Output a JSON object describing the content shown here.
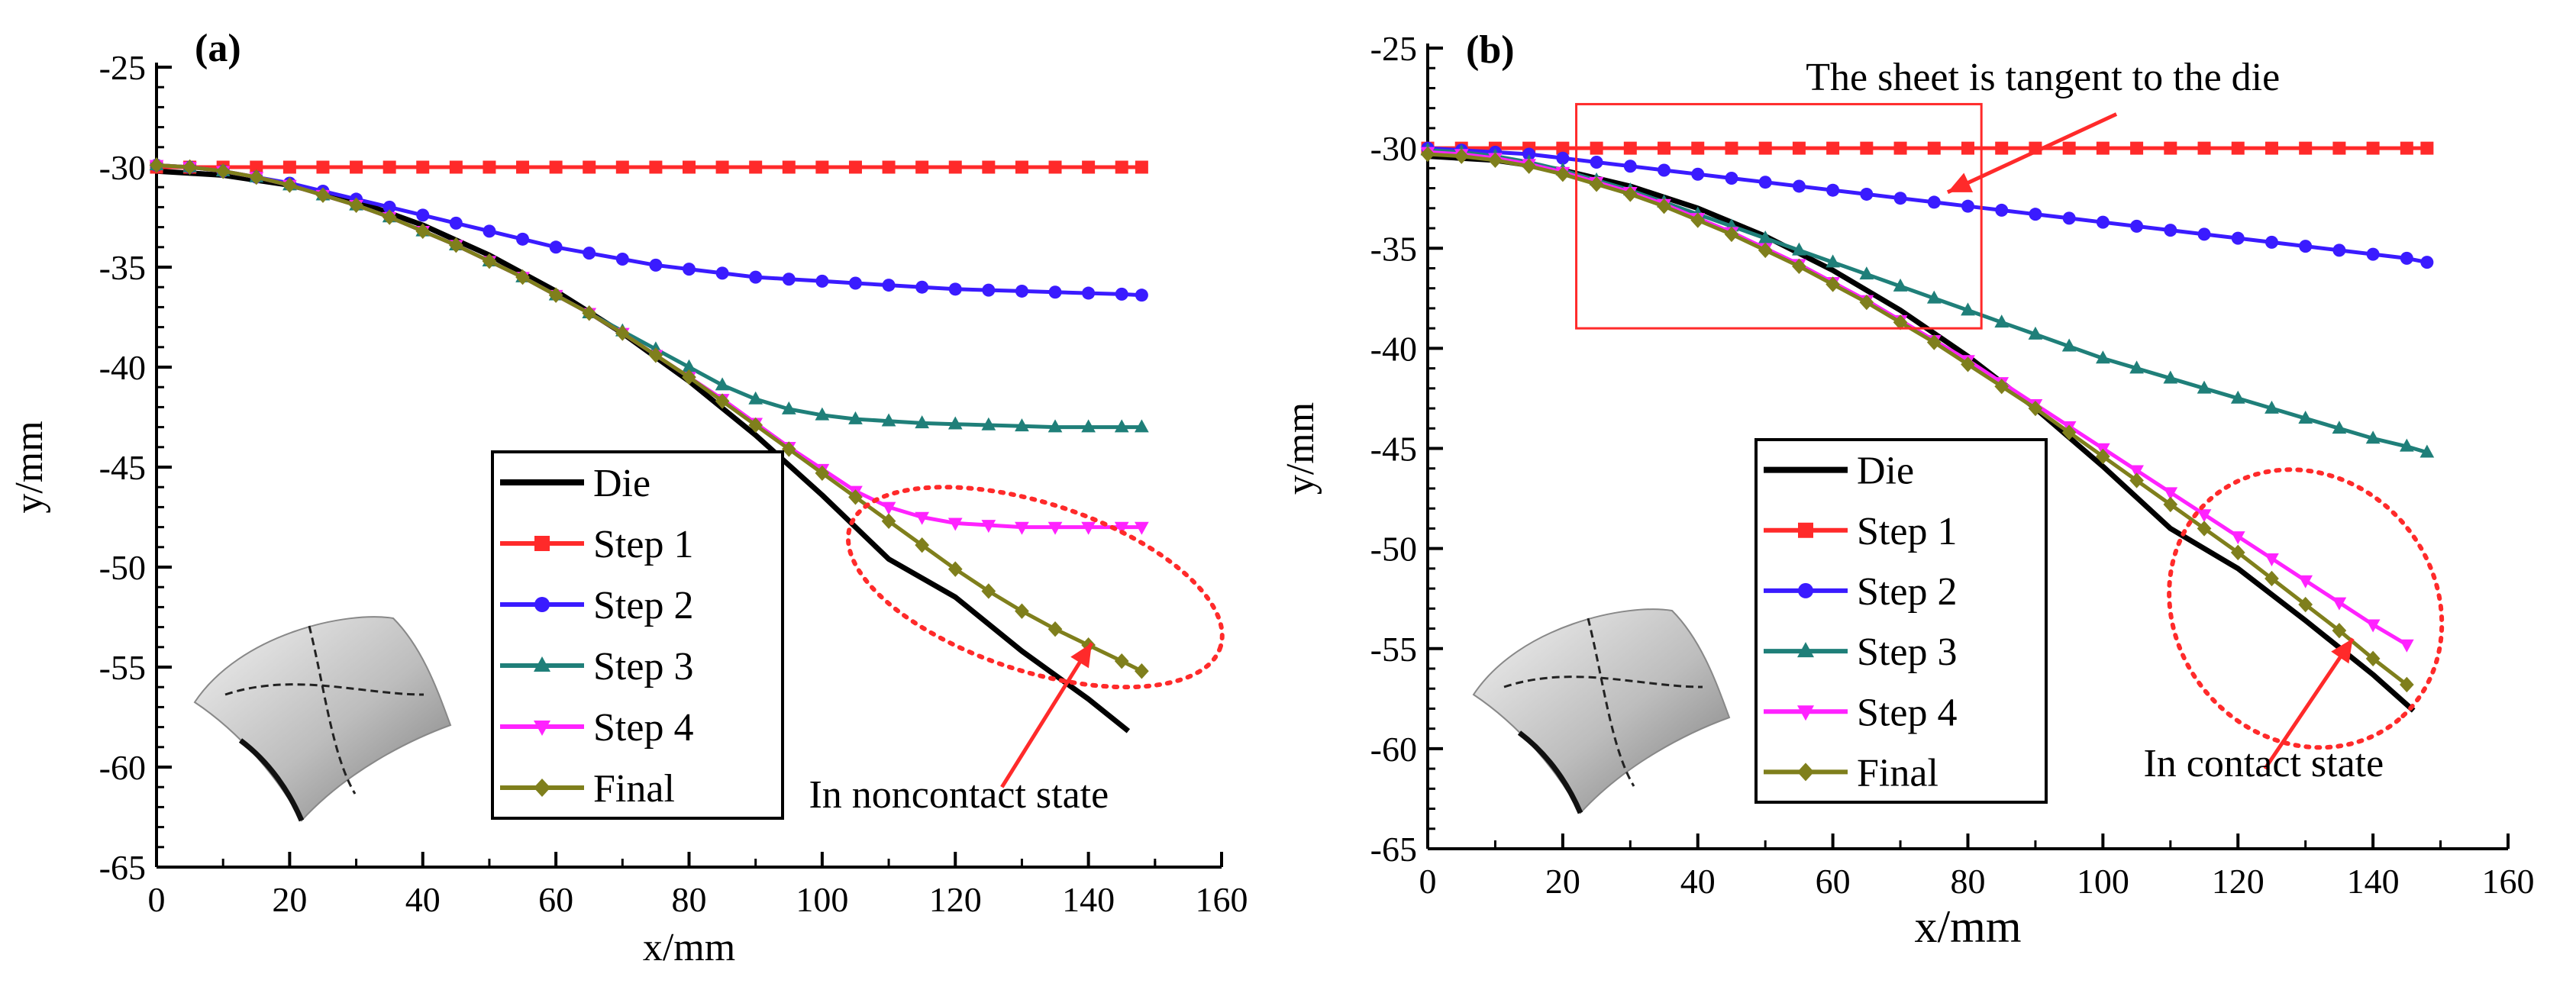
{
  "colors": {
    "die": "#000000",
    "step1": "#ff2a2a",
    "step2": "#3a1bff",
    "step3": "#1f7f79",
    "step4": "#ff22ff",
    "final": "#7f7f1c",
    "annotation": "#ff2a2a",
    "axis": "#000000"
  },
  "chart_data": [
    {
      "type": "line",
      "panel_label": "(a)",
      "xlabel": "x/mm",
      "ylabel": "y/mm",
      "xlim": [
        0,
        160
      ],
      "ylim": [
        -65,
        -25
      ],
      "xticks": [
        0,
        20,
        40,
        60,
        80,
        100,
        120,
        140,
        160
      ],
      "yticks": [
        -25,
        -30,
        -35,
        -40,
        -45,
        -50,
        -55,
        -60,
        -65
      ],
      "legend_position": "lower-center",
      "annotation": "In noncontact state",
      "series": [
        {
          "name": "Die",
          "key": "die",
          "marker": "none",
          "x": [
            0,
            10,
            20,
            30,
            40,
            50,
            60,
            70,
            80,
            90,
            100,
            110,
            120,
            130,
            140,
            146
          ],
          "y": [
            -30.2,
            -30.4,
            -30.9,
            -31.7,
            -32.9,
            -34.4,
            -36.2,
            -38.3,
            -40.7,
            -43.4,
            -46.4,
            -49.6,
            -51.5,
            -54.2,
            -56.6,
            -58.2
          ]
        },
        {
          "name": "Step 1",
          "key": "step1",
          "marker": "square",
          "x": [
            0,
            5,
            10,
            15,
            20,
            25,
            30,
            35,
            40,
            45,
            50,
            55,
            60,
            65,
            70,
            75,
            80,
            85,
            90,
            95,
            100,
            105,
            110,
            115,
            120,
            125,
            130,
            135,
            140,
            145,
            148
          ],
          "y": [
            -30,
            -30,
            -30,
            -30,
            -30,
            -30,
            -30,
            -30,
            -30,
            -30,
            -30,
            -30,
            -30,
            -30,
            -30,
            -30,
            -30,
            -30,
            -30,
            -30,
            -30,
            -30,
            -30,
            -30,
            -30,
            -30,
            -30,
            -30,
            -30,
            -30,
            -30
          ]
        },
        {
          "name": "Step 2",
          "key": "step2",
          "marker": "circle",
          "x": [
            0,
            5,
            10,
            15,
            20,
            25,
            30,
            35,
            40,
            45,
            50,
            55,
            60,
            65,
            70,
            75,
            80,
            85,
            90,
            95,
            100,
            105,
            110,
            115,
            120,
            125,
            130,
            135,
            140,
            145,
            148
          ],
          "y": [
            -29.9,
            -30.0,
            -30.2,
            -30.5,
            -30.8,
            -31.2,
            -31.6,
            -32.0,
            -32.4,
            -32.8,
            -33.2,
            -33.6,
            -34.0,
            -34.3,
            -34.6,
            -34.9,
            -35.1,
            -35.3,
            -35.5,
            -35.6,
            -35.7,
            -35.8,
            -35.9,
            -36.0,
            -36.1,
            -36.15,
            -36.2,
            -36.25,
            -36.3,
            -36.35,
            -36.4
          ]
        },
        {
          "name": "Step 3",
          "key": "step3",
          "marker": "triangle",
          "x": [
            0,
            5,
            10,
            15,
            20,
            25,
            30,
            35,
            40,
            45,
            50,
            55,
            60,
            65,
            70,
            75,
            80,
            85,
            90,
            95,
            100,
            105,
            110,
            115,
            120,
            125,
            130,
            135,
            140,
            145,
            148
          ],
          "y": [
            -29.9,
            -30.0,
            -30.2,
            -30.5,
            -30.9,
            -31.4,
            -31.9,
            -32.5,
            -33.2,
            -33.9,
            -34.7,
            -35.5,
            -36.4,
            -37.3,
            -38.2,
            -39.1,
            -40.0,
            -40.9,
            -41.6,
            -42.1,
            -42.4,
            -42.6,
            -42.7,
            -42.8,
            -42.85,
            -42.9,
            -42.95,
            -43.0,
            -43.0,
            -43.0,
            -43.0
          ]
        },
        {
          "name": "Step 4",
          "key": "step4",
          "marker": "triangle-down",
          "x": [
            0,
            5,
            10,
            15,
            20,
            25,
            30,
            35,
            40,
            45,
            50,
            55,
            60,
            65,
            70,
            75,
            80,
            85,
            90,
            95,
            100,
            105,
            110,
            115,
            120,
            125,
            130,
            135,
            140,
            145,
            148
          ],
          "y": [
            -29.9,
            -30.0,
            -30.2,
            -30.5,
            -30.9,
            -31.4,
            -31.9,
            -32.5,
            -33.2,
            -33.9,
            -34.7,
            -35.5,
            -36.4,
            -37.3,
            -38.3,
            -39.4,
            -40.5,
            -41.6,
            -42.8,
            -44.0,
            -45.1,
            -46.2,
            -47.0,
            -47.5,
            -47.8,
            -47.9,
            -48.0,
            -48.0,
            -48.0,
            -48.0,
            -48.0
          ]
        },
        {
          "name": "Final",
          "key": "final",
          "marker": "diamond",
          "x": [
            0,
            5,
            10,
            15,
            20,
            25,
            30,
            35,
            40,
            45,
            50,
            55,
            60,
            65,
            70,
            75,
            80,
            85,
            90,
            95,
            100,
            105,
            110,
            115,
            120,
            125,
            130,
            135,
            140,
            145,
            148
          ],
          "y": [
            -29.9,
            -30.0,
            -30.2,
            -30.5,
            -30.9,
            -31.4,
            -31.9,
            -32.5,
            -33.2,
            -33.9,
            -34.7,
            -35.5,
            -36.4,
            -37.3,
            -38.3,
            -39.4,
            -40.5,
            -41.7,
            -42.9,
            -44.1,
            -45.3,
            -46.5,
            -47.7,
            -48.9,
            -50.1,
            -51.2,
            -52.2,
            -53.1,
            -53.9,
            -54.7,
            -55.2
          ]
        }
      ]
    },
    {
      "type": "line",
      "panel_label": "(b)",
      "xlabel": "x/mm",
      "ylabel": "y/mm",
      "xlim": [
        0,
        160
      ],
      "ylim": [
        -65,
        -25
      ],
      "xticks": [
        0,
        20,
        40,
        60,
        80,
        100,
        120,
        140,
        160
      ],
      "yticks": [
        -25,
        -30,
        -35,
        -40,
        -45,
        -50,
        -55,
        -60,
        -65
      ],
      "legend_position": "lower-center",
      "annotation": "In contact state",
      "annotation_top": "The sheet is tangent to the die",
      "series": [
        {
          "name": "Die",
          "key": "die",
          "marker": "none",
          "x": [
            0,
            10,
            20,
            30,
            40,
            50,
            60,
            70,
            80,
            90,
            100,
            110,
            120,
            130,
            140,
            146
          ],
          "y": [
            -30.4,
            -30.6,
            -31.1,
            -31.9,
            -33.0,
            -34.4,
            -36.1,
            -38.1,
            -40.4,
            -43.0,
            -45.9,
            -49.0,
            -51.0,
            -53.6,
            -56.3,
            -58.1
          ]
        },
        {
          "name": "Step 1",
          "key": "step1",
          "marker": "square",
          "x": [
            0,
            5,
            10,
            15,
            20,
            25,
            30,
            35,
            40,
            45,
            50,
            55,
            60,
            65,
            70,
            75,
            80,
            85,
            90,
            95,
            100,
            105,
            110,
            115,
            120,
            125,
            130,
            135,
            140,
            145,
            148
          ],
          "y": [
            -30,
            -30,
            -30,
            -30,
            -30,
            -30,
            -30,
            -30,
            -30,
            -30,
            -30,
            -30,
            -30,
            -30,
            -30,
            -30,
            -30,
            -30,
            -30,
            -30,
            -30,
            -30,
            -30,
            -30,
            -30,
            -30,
            -30,
            -30,
            -30,
            -30,
            -30
          ]
        },
        {
          "name": "Step 2",
          "key": "step2",
          "marker": "circle",
          "x": [
            0,
            5,
            10,
            15,
            20,
            25,
            30,
            35,
            40,
            45,
            50,
            55,
            60,
            65,
            70,
            75,
            80,
            85,
            90,
            95,
            100,
            105,
            110,
            115,
            120,
            125,
            130,
            135,
            140,
            145,
            148
          ],
          "y": [
            -30.0,
            -30.1,
            -30.2,
            -30.3,
            -30.5,
            -30.7,
            -30.9,
            -31.1,
            -31.3,
            -31.5,
            -31.7,
            -31.9,
            -32.1,
            -32.3,
            -32.5,
            -32.7,
            -32.9,
            -33.1,
            -33.3,
            -33.5,
            -33.7,
            -33.9,
            -34.1,
            -34.3,
            -34.5,
            -34.7,
            -34.9,
            -35.1,
            -35.3,
            -35.5,
            -35.7
          ]
        },
        {
          "name": "Step 3",
          "key": "step3",
          "marker": "triangle",
          "x": [
            0,
            5,
            10,
            15,
            20,
            25,
            30,
            35,
            40,
            45,
            50,
            55,
            60,
            65,
            70,
            75,
            80,
            85,
            90,
            95,
            100,
            105,
            110,
            115,
            120,
            125,
            130,
            135,
            140,
            145,
            148
          ],
          "y": [
            -30.1,
            -30.2,
            -30.4,
            -30.7,
            -31.1,
            -31.6,
            -32.1,
            -32.7,
            -33.3,
            -33.9,
            -34.5,
            -35.1,
            -35.7,
            -36.3,
            -36.9,
            -37.5,
            -38.1,
            -38.7,
            -39.3,
            -39.9,
            -40.5,
            -41.0,
            -41.5,
            -42.0,
            -42.5,
            -43.0,
            -43.5,
            -44.0,
            -44.5,
            -44.9,
            -45.2
          ]
        },
        {
          "name": "Step 4",
          "key": "step4",
          "marker": "triangle-down",
          "x": [
            0,
            5,
            10,
            15,
            20,
            25,
            30,
            35,
            40,
            45,
            50,
            55,
            60,
            65,
            70,
            75,
            80,
            85,
            90,
            95,
            100,
            105,
            110,
            115,
            120,
            125,
            130,
            135,
            140,
            145
          ],
          "y": [
            -30.2,
            -30.3,
            -30.5,
            -30.8,
            -31.2,
            -31.7,
            -32.2,
            -32.8,
            -33.5,
            -34.2,
            -35.0,
            -35.8,
            -36.7,
            -37.6,
            -38.6,
            -39.6,
            -40.6,
            -41.7,
            -42.8,
            -43.9,
            -45.0,
            -46.1,
            -47.2,
            -48.3,
            -49.4,
            -50.5,
            -51.6,
            -52.7,
            -53.8,
            -54.8
          ]
        },
        {
          "name": "Final",
          "key": "final",
          "marker": "diamond",
          "x": [
            0,
            5,
            10,
            15,
            20,
            25,
            30,
            35,
            40,
            45,
            50,
            55,
            60,
            65,
            70,
            75,
            80,
            85,
            90,
            95,
            100,
            105,
            110,
            115,
            120,
            125,
            130,
            135,
            140,
            145
          ],
          "y": [
            -30.3,
            -30.4,
            -30.6,
            -30.9,
            -31.3,
            -31.8,
            -32.3,
            -32.9,
            -33.6,
            -34.3,
            -35.1,
            -35.9,
            -36.8,
            -37.7,
            -38.7,
            -39.7,
            -40.8,
            -41.9,
            -43.0,
            -44.2,
            -45.4,
            -46.6,
            -47.8,
            -49.0,
            -50.2,
            -51.5,
            -52.8,
            -54.1,
            -55.5,
            -56.8
          ]
        }
      ]
    }
  ]
}
